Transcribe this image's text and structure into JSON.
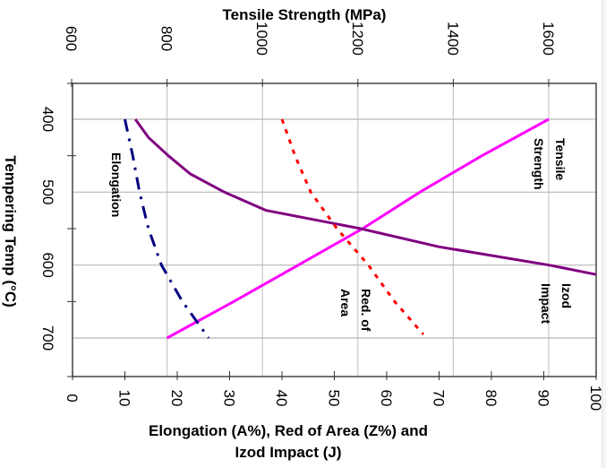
{
  "chart_data": {
    "type": "line",
    "orientation": "rotated-90-clockwise",
    "title": "",
    "top_axis": {
      "label": "Tensile Strength (MPa)",
      "range": [
        600,
        1700
      ],
      "ticks": [
        "600",
        "800",
        "1000",
        "1200",
        "1400",
        "1600"
      ],
      "tick_values": [
        600,
        800,
        1000,
        1200,
        1400,
        1600
      ],
      "grid": true
    },
    "bottom_axis": {
      "label_line1": "Elongation (A%), Red of Area (Z%) and",
      "label_line2": "Izod Impact (J)",
      "range": [
        0,
        100
      ],
      "ticks": [
        "0",
        "10",
        "20",
        "30",
        "40",
        "50",
        "60",
        "70",
        "80",
        "90",
        "100"
      ],
      "tick_values": [
        0,
        10,
        20,
        30,
        40,
        50,
        60,
        70,
        80,
        90,
        100
      ]
    },
    "temp_axis": {
      "label": "Tempering Temp (°C)",
      "range": [
        350,
        750
      ],
      "ticks": [
        "400",
        "500",
        "600",
        "700"
      ],
      "tick_values": [
        400,
        500,
        600,
        700
      ],
      "grid": true
    },
    "series": [
      {
        "name": "Tensile Strength",
        "label_lines": [
          "Tensile",
          "Strength"
        ],
        "axis": "top",
        "color": "#ff00ff",
        "style": "solid",
        "temps": [
          400,
          450,
          500,
          550,
          600,
          650,
          700
        ],
        "values": [
          1600,
          1460,
          1330,
          1210,
          1075,
          940,
          800
        ]
      },
      {
        "name": "Izod Impact",
        "label_lines": [
          "Izod",
          "Impact"
        ],
        "axis": "bottom",
        "color": "#800080",
        "style": "solid",
        "temps": [
          400,
          425,
          450,
          475,
          500,
          525,
          550,
          575,
          600,
          613
        ],
        "values": [
          12,
          14.5,
          18.3,
          22.5,
          29,
          37,
          55,
          70,
          91,
          100
        ]
      },
      {
        "name": "Red. of Area",
        "label_lines": [
          "Red. of",
          "Area"
        ],
        "axis": "bottom",
        "color": "#ff0000",
        "style": "dashed",
        "temps": [
          400,
          450,
          500,
          550,
          600,
          650,
          695
        ],
        "values": [
          40,
          42.5,
          45.5,
          50.5,
          56.5,
          61.5,
          67
        ]
      },
      {
        "name": "Elongation",
        "label_lines": [
          "Elongation"
        ],
        "axis": "bottom",
        "color": "#000080",
        "style": "dash-dot",
        "temps": [
          400,
          450,
          500,
          550,
          600,
          650,
          700
        ],
        "values": [
          10,
          11.5,
          12.8,
          14.5,
          17,
          21,
          26
        ]
      }
    ]
  }
}
